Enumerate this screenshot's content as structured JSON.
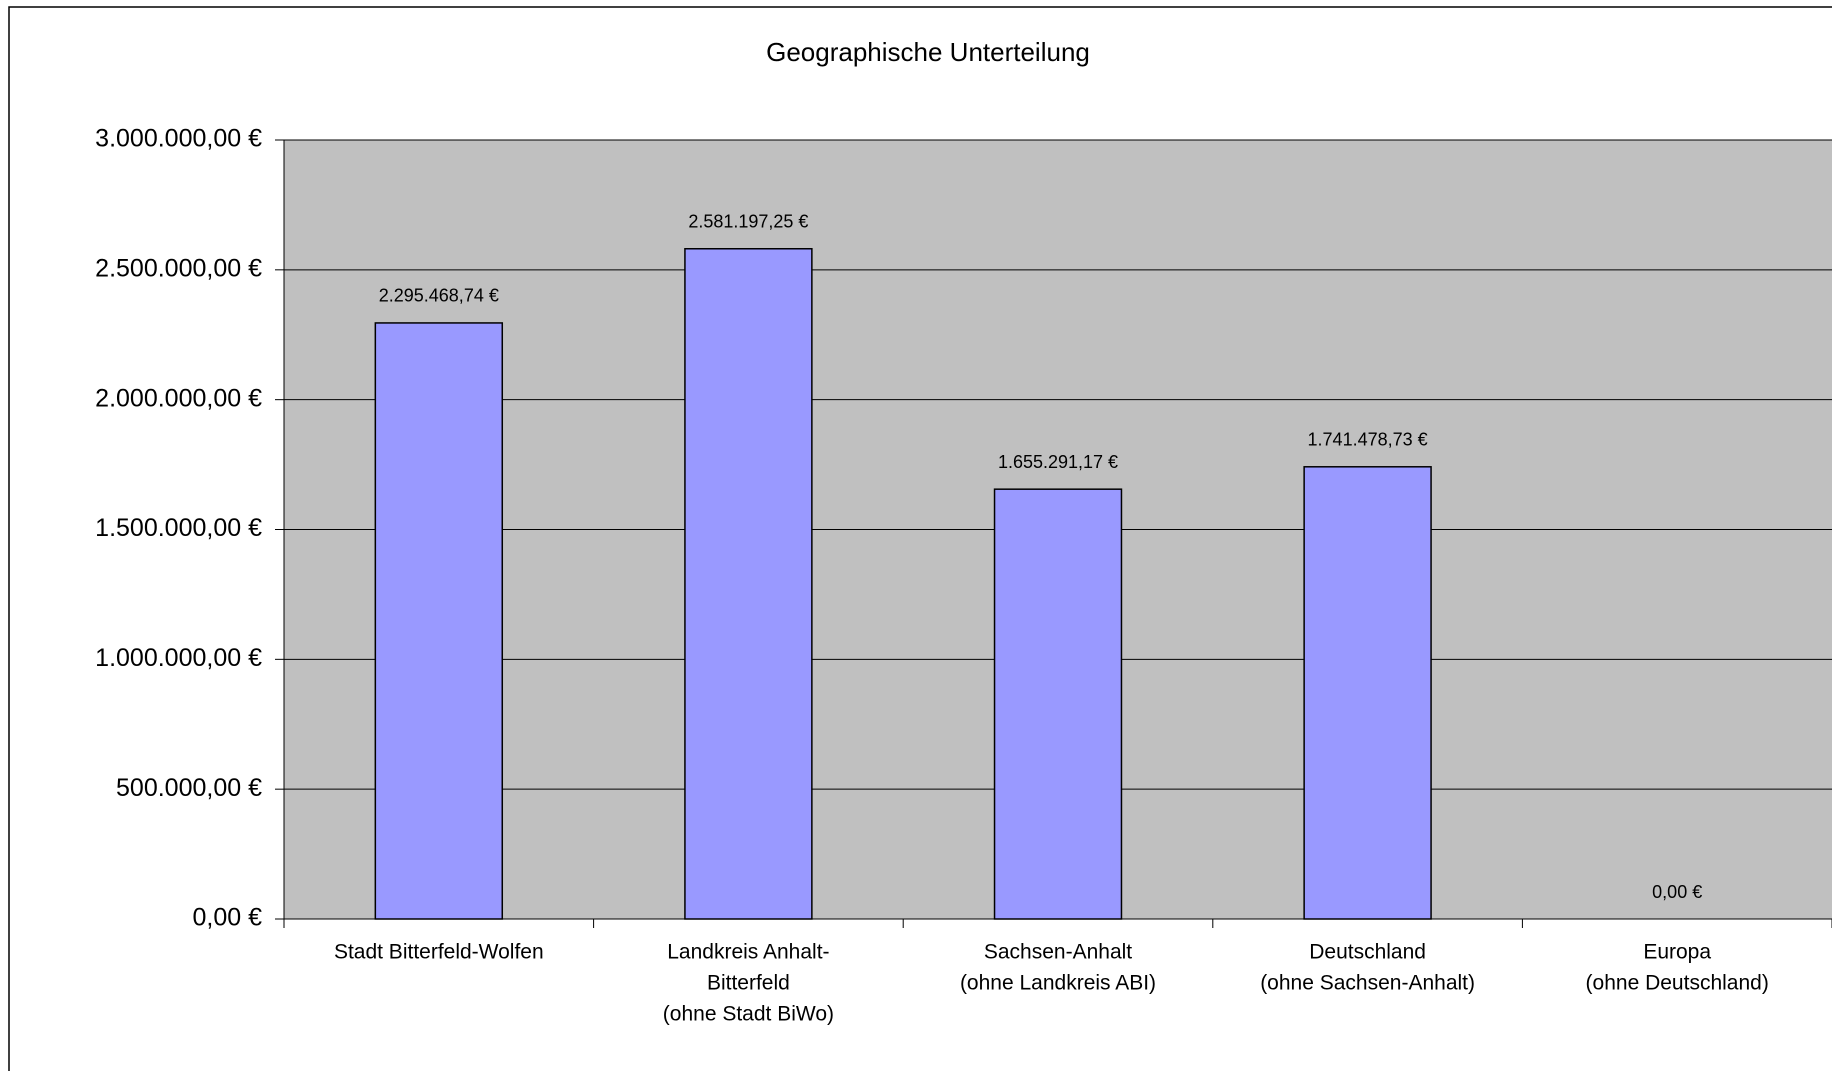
{
  "chart_data": {
    "type": "bar",
    "title": "Geographische Unterteilung",
    "categories": [
      [
        "Stadt Bitterfeld-Wolfen"
      ],
      [
        "Landkreis Anhalt-",
        "Bitterfeld",
        "(ohne Stadt BiWo)"
      ],
      [
        "Sachsen-Anhalt",
        "(ohne Landkreis ABI)"
      ],
      [
        "Deutschland",
        "(ohne Sachsen-Anhalt)"
      ],
      [
        "Europa",
        "(ohne Deutschland)"
      ]
    ],
    "values": [
      2295468.74,
      2581197.25,
      1655291.17,
      1741478.73,
      0
    ],
    "value_labels": [
      "2.295.468,74 €",
      "2.581.197,25 €",
      "1.655.291,17 €",
      "1.741.478,73 €",
      "0,00 €"
    ],
    "color": "#9999ff",
    "background": "#c0c0c0",
    "ylim": [
      0,
      3000000
    ],
    "yticks": [
      {
        "value": 0,
        "label": "0,00 €"
      },
      {
        "value": 500000,
        "label": "500.000,00 €"
      },
      {
        "value": 1000000,
        "label": "1.000.000,00 €"
      },
      {
        "value": 1500000,
        "label": "1.500.000,00 €"
      },
      {
        "value": 2000000,
        "label": "2.000.000,00 €"
      },
      {
        "value": 2500000,
        "label": "2.500.000,00 €"
      },
      {
        "value": 3000000,
        "label": "3.000.000,00 €"
      }
    ],
    "grid": true
  }
}
